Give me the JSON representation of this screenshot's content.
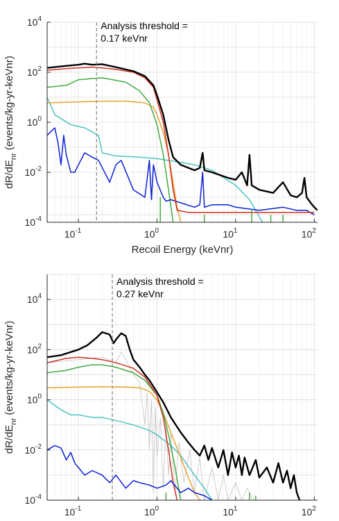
{
  "chart_data": [
    {
      "type": "line",
      "xscale": "log",
      "yscale": "log",
      "xlim": [
        0.04,
        110
      ],
      "ylim": [
        0.0001,
        10000
      ],
      "xlabel": "Recoil Energy (keVnr)",
      "ylabel_main": "dR/dE",
      "ylabel_sub": "nr",
      "ylabel_rest": " (events/kg-yr-keVnr)",
      "xticks": [
        {
          "value": 0.1,
          "base": "10",
          "exp": "-1"
        },
        {
          "value": 1,
          "base": "10",
          "exp": "0"
        },
        {
          "value": 10,
          "base": "10",
          "exp": "1"
        },
        {
          "value": 100,
          "base": "10",
          "exp": "2"
        }
      ],
      "yticks": [
        {
          "value": 0.0001,
          "base": "10",
          "exp": "-4"
        },
        {
          "value": 0.01,
          "base": "10",
          "exp": "-2"
        },
        {
          "value": 1,
          "base": "10",
          "exp": "0"
        },
        {
          "value": 100,
          "base": "10",
          "exp": "2"
        },
        {
          "value": 10000,
          "base": "10",
          "exp": "4"
        }
      ],
      "threshold": {
        "value": 0.17,
        "line1": "Analysis threshold =",
        "line2": "0.17 keVnr"
      },
      "grid": true,
      "series": [
        {
          "color": "#d9d9d9",
          "width": 0.8,
          "x": [
            0.04,
            0.07,
            0.1,
            0.2,
            0.4,
            0.8,
            1.2,
            1.6,
            2,
            3,
            5,
            10,
            20,
            50,
            100
          ],
          "y": [
            0.0002,
            0.0002,
            0.0002,
            0.0002,
            0.0002,
            0.0002,
            0.0002,
            0.0002,
            0.0002,
            0.0002,
            0.0002,
            0.0002,
            0.0002,
            0.0002,
            0.0002
          ]
        },
        {
          "color": "#4dc3c3",
          "width": 1.5,
          "x": [
            0.04,
            0.05,
            0.08,
            0.12,
            0.18,
            0.2,
            0.3,
            0.6,
            1,
            2,
            3,
            5,
            10,
            15,
            22
          ],
          "y": [
            10,
            2,
            0.8,
            0.6,
            0.3,
            0.06,
            0.045,
            0.04,
            0.035,
            0.025,
            0.02,
            0.012,
            0.003,
            0.0008,
            0.0001
          ]
        },
        {
          "color": "#e8a030",
          "width": 1.5,
          "x": [
            0.04,
            0.1,
            0.2,
            0.4,
            0.7,
            0.9,
            1,
            1.2,
            1.4,
            1.6,
            1.8,
            2
          ],
          "y": [
            6,
            6.5,
            7,
            7,
            6,
            4,
            2,
            0.4,
            0.05,
            0.004,
            0.0004,
            0.0001
          ]
        },
        {
          "color": "#3faa3f",
          "width": 1.5,
          "x": [
            0.04,
            0.07,
            0.1,
            0.2,
            0.4,
            0.6,
            0.8,
            1,
            1.2,
            1.4,
            1.6
          ],
          "y": [
            25,
            30,
            50,
            60,
            40,
            18,
            6,
            0.8,
            0.05,
            0.002,
            0.0001
          ]
        },
        {
          "color": "#0a1fd4",
          "width": 1.5,
          "x": [
            0.04,
            0.05,
            0.055,
            0.06,
            0.065,
            0.07,
            0.08,
            0.09,
            0.1,
            0.12,
            0.15,
            0.18,
            0.25,
            0.3,
            0.35,
            0.5,
            0.7,
            0.8,
            0.85,
            0.9,
            1,
            1.2,
            1.3,
            1.5,
            2,
            3,
            3.5,
            3.8,
            4,
            5,
            8,
            10,
            20,
            40,
            60,
            80,
            100
          ],
          "y": [
            0.3,
            0.6,
            0.15,
            0.02,
            0.3,
            0.05,
            0.01,
            0.01,
            0.02,
            0.06,
            0.04,
            0.03,
            0.004,
            0.02,
            0.03,
            0.002,
            0.001,
            0.03,
            0.0008,
            0.02,
            0.004,
            0.001,
            0.0007,
            0.0008,
            0.0006,
            0.0004,
            0.0005,
            0.01,
            0.0004,
            0.0005,
            0.0005,
            0.0004,
            0.0003,
            0.0004,
            0.0003,
            0.0003,
            0.0002
          ]
        },
        {
          "color": "#d0301e",
          "width": 1.5,
          "x": [
            0.04,
            0.07,
            0.1,
            0.15,
            0.2,
            0.3,
            0.5,
            0.7,
            0.9,
            1,
            1.2,
            1.4,
            1.6,
            1.8,
            2.5,
            5,
            10,
            20,
            50,
            100
          ],
          "y": [
            120,
            140,
            150,
            160,
            150,
            130,
            100,
            60,
            25,
            8,
            1,
            0.05,
            0.002,
            0.0003,
            0.00025,
            0.00025,
            0.00025,
            0.00025,
            0.00025,
            0.00025
          ]
        },
        {
          "color": "#000000",
          "width": 2.4,
          "x": [
            0.04,
            0.07,
            0.1,
            0.12,
            0.15,
            0.2,
            0.3,
            0.5,
            0.7,
            0.9,
            1,
            1.2,
            1.4,
            1.6,
            2,
            3,
            3.5,
            3.8,
            4,
            5,
            8,
            10,
            12,
            14,
            15,
            16,
            20,
            30,
            40,
            50,
            60,
            70,
            75,
            80,
            90,
            100,
            110
          ],
          "y": [
            150,
            180,
            200,
            220,
            200,
            210,
            160,
            110,
            70,
            30,
            12,
            2,
            0.2,
            0.04,
            0.02,
            0.012,
            0.015,
            0.06,
            0.012,
            0.01,
            0.006,
            0.005,
            0.01,
            0.003,
            0.05,
            0.003,
            0.002,
            0.0015,
            0.004,
            0.0012,
            0.001,
            0.0015,
            0.006,
            0.001,
            0.0006,
            0.0004,
            0.0003
          ]
        },
        {
          "color": "#3faa3f",
          "width": 1.5,
          "x": [
            1.1,
            1.1,
            4,
            4,
            16,
            16,
            28,
            28,
            40,
            40
          ],
          "y": [
            0.0001,
            0.001,
            0.0001,
            0.0002,
            0.0001,
            0.0003,
            0.0001,
            0.0002,
            0.0001,
            0.0002
          ]
        }
      ]
    },
    {
      "type": "line",
      "xscale": "log",
      "yscale": "log",
      "xlim": [
        0.04,
        110
      ],
      "ylim": [
        0.0001,
        100000
      ],
      "xlabel": "Recoil Energy (keVnr)",
      "ylabel_main": "dR/dE",
      "ylabel_sub": "nr",
      "ylabel_rest": " (events/kg-yr-keVnr)",
      "xticks": [
        {
          "value": 0.1,
          "base": "10",
          "exp": "-1"
        },
        {
          "value": 1,
          "base": "10",
          "exp": "0"
        },
        {
          "value": 10,
          "base": "10",
          "exp": "1"
        },
        {
          "value": 100,
          "base": "10",
          "exp": "2"
        }
      ],
      "yticks": [
        {
          "value": 0.0001,
          "base": "10",
          "exp": "-4"
        },
        {
          "value": 0.01,
          "base": "10",
          "exp": "-2"
        },
        {
          "value": 1,
          "base": "10",
          "exp": "0"
        },
        {
          "value": 100,
          "base": "10",
          "exp": "2"
        },
        {
          "value": 10000,
          "base": "10",
          "exp": "4"
        }
      ],
      "threshold": {
        "value": 0.27,
        "line1": "Analysis threshold =",
        "line2": "0.27 keVnr"
      },
      "grid": true,
      "series": [
        {
          "color": "#c8c8c8",
          "width": 0.9,
          "x": [
            0.04,
            0.1,
            0.2,
            0.3,
            0.35,
            0.4,
            0.5,
            0.6,
            0.7,
            0.75,
            0.8,
            0.85,
            0.9,
            0.95,
            1,
            1.1,
            1.2,
            1.3,
            1.4,
            1.5,
            1.7,
            1.9,
            2.2,
            2.6,
            3,
            3.5,
            4,
            5,
            6,
            7,
            8,
            10,
            12,
            14,
            17,
            20
          ],
          "y": [
            30,
            40,
            50,
            30,
            80,
            40,
            10,
            5,
            0.1,
            2,
            0.01,
            1,
            0.0002,
            0.5,
            0.005,
            0.2,
            0.0003,
            0.1,
            0.001,
            0.05,
            0.0002,
            0.02,
            0.0005,
            0.01,
            0.0002,
            0.005,
            0.0001,
            0.002,
            0.0001,
            0.001,
            0.0001,
            0.0005,
            0.0001,
            0.0003,
            0.0001,
            0.0001
          ]
        },
        {
          "color": "#4dc3c3",
          "width": 1.5,
          "x": [
            0.04,
            0.06,
            0.08,
            0.1,
            0.15,
            0.2,
            0.3,
            0.5,
            0.8,
            1,
            1.5,
            2,
            3,
            4,
            5
          ],
          "y": [
            1,
            0.4,
            0.25,
            0.25,
            0.2,
            0.2,
            0.15,
            0.1,
            0.06,
            0.04,
            0.015,
            0.006,
            0.001,
            0.0003,
            0.0001
          ]
        },
        {
          "color": "#e8a030",
          "width": 1.5,
          "x": [
            0.04,
            0.1,
            0.2,
            0.4,
            0.6,
            0.8,
            1,
            1.2,
            1.5,
            2,
            2.5,
            3,
            3.5
          ],
          "y": [
            3,
            3.2,
            3.3,
            3.2,
            3,
            2.2,
            1,
            0.3,
            0.05,
            0.005,
            0.0008,
            0.0002,
            0.0001
          ]
        },
        {
          "color": "#3faa3f",
          "width": 1.5,
          "x": [
            0.04,
            0.07,
            0.1,
            0.15,
            0.2,
            0.3,
            0.5,
            0.7,
            1,
            1.2,
            1.4,
            1.7,
            2
          ],
          "y": [
            12,
            15,
            20,
            25,
            25,
            20,
            12,
            6,
            1.5,
            0.3,
            0.04,
            0.002,
            0.0001
          ]
        },
        {
          "color": "#d0301e",
          "width": 1.5,
          "x": [
            0.04,
            0.07,
            0.1,
            0.15,
            0.2,
            0.3,
            0.5,
            0.7,
            1,
            1.2,
            1.4,
            1.6,
            1.8
          ],
          "y": [
            30,
            45,
            50,
            45,
            40,
            30,
            18,
            8,
            1.5,
            0.2,
            0.01,
            0.0005,
            0.0001
          ]
        },
        {
          "color": "#0a1fd4",
          "width": 1.5,
          "x": [
            0.04,
            0.05,
            0.06,
            0.07,
            0.08,
            0.09,
            0.1,
            0.12,
            0.15,
            0.2,
            0.25,
            0.3,
            0.4,
            0.5,
            0.6,
            0.8,
            1,
            1.3,
            1.5,
            1.8,
            2,
            2.5,
            3,
            4,
            5
          ],
          "y": [
            0.01,
            0.015,
            0.012,
            0.004,
            0.008,
            0.003,
            0.002,
            0.001,
            0.0015,
            0.001,
            0.0005,
            0.001,
            0.0003,
            0.0006,
            0.0005,
            0.0004,
            0.0003,
            0.0004,
            0.0006,
            0.0003,
            0.0002,
            0.0003,
            0.0002,
            0.00015,
            0.0001
          ]
        },
        {
          "color": "#000000",
          "width": 2.4,
          "x": [
            0.04,
            0.06,
            0.08,
            0.1,
            0.13,
            0.17,
            0.2,
            0.25,
            0.28,
            0.3,
            0.35,
            0.4,
            0.45,
            0.5,
            0.6,
            0.7,
            0.8,
            1,
            1.2,
            1.5,
            2,
            2.5,
            3,
            3.5,
            4,
            4.5,
            5,
            6,
            7,
            8,
            9,
            10,
            11,
            12,
            13,
            15,
            18,
            20,
            25,
            30,
            35,
            40,
            45,
            50,
            55,
            60,
            65
          ],
          "y": [
            50,
            60,
            80,
            100,
            150,
            300,
            500,
            400,
            180,
            250,
            450,
            350,
            100,
            40,
            20,
            10,
            6,
            2,
            0.8,
            0.2,
            0.05,
            0.02,
            0.01,
            0.006,
            0.015,
            0.004,
            0.012,
            0.002,
            0.01,
            0.001,
            0.008,
            0.002,
            0.006,
            0.001,
            0.005,
            0.001,
            0.004,
            0.0008,
            0.002,
            0.0005,
            0.003,
            0.0005,
            0.0015,
            0.0003,
            0.001,
            0.0002,
            0.0001
          ]
        },
        {
          "color": "#3faa3f",
          "width": 1.5,
          "x": [
            1.3,
            1.3,
            15,
            15,
            18,
            18
          ],
          "y": [
            0.0001,
            0.0002,
            0.0001,
            0.0002,
            0.0001,
            0.00015
          ]
        }
      ]
    }
  ]
}
